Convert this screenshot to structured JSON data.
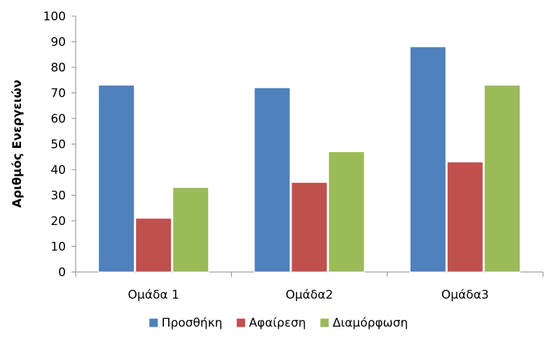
{
  "chart_data": {
    "type": "bar",
    "categories": [
      "Ομάδα 1",
      "Ομάδα2",
      "Ομάδα3"
    ],
    "series": [
      {
        "name": "Προσθήκη",
        "color": "#4f81bd",
        "values": [
          73,
          72,
          88
        ]
      },
      {
        "name": "Αφαίρεση",
        "color": "#c0504d",
        "values": [
          21,
          35,
          43
        ]
      },
      {
        "name": "Διαμόρφωση",
        "color": "#9bbb59",
        "values": [
          33,
          47,
          73
        ]
      }
    ],
    "ylabel": "Αριθμός Ενεργειών",
    "xlabel": "",
    "ylim": [
      0,
      100
    ],
    "yticks": [
      0,
      10,
      20,
      30,
      40,
      50,
      60,
      70,
      80,
      90,
      100
    ],
    "grid": false,
    "legend_position": "bottom"
  }
}
